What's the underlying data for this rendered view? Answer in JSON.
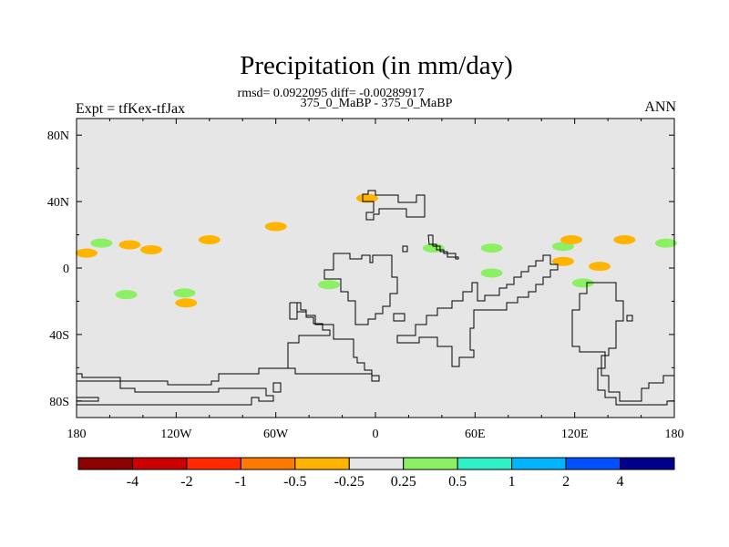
{
  "map": {
    "title": "Precipitation (in mm/day)",
    "stats_line": "rmsd= 0.0922095 diff= -0.00289917",
    "period_line": "375_0_MaBP - 375_0_MaBP",
    "left_label": "Expt = tfKex-tfJax",
    "right_label": "ANN",
    "background_color": "#e6e6e6",
    "lat_ticks": [
      {
        "value": 80,
        "label": "80N"
      },
      {
        "value": 40,
        "label": "40N"
      },
      {
        "value": 0,
        "label": "0"
      },
      {
        "value": -40,
        "label": "40S"
      },
      {
        "value": -80,
        "label": "80S"
      }
    ],
    "lon_ticks": [
      {
        "value": -180,
        "label": "180"
      },
      {
        "value": -120,
        "label": "120W"
      },
      {
        "value": -60,
        "label": "60W"
      },
      {
        "value": 0,
        "label": "0"
      },
      {
        "value": 60,
        "label": "60E"
      },
      {
        "value": 120,
        "label": "120E"
      },
      {
        "value": 180,
        "label": "180"
      }
    ],
    "anomaly_patches": [
      {
        "lon": -165,
        "lat": 15,
        "color": "#8cf064"
      },
      {
        "lon": -174,
        "lat": 9,
        "color": "#ffb400"
      },
      {
        "lon": -148,
        "lat": 14,
        "color": "#ffb400"
      },
      {
        "lon": -135,
        "lat": 11,
        "color": "#ffb400"
      },
      {
        "lon": -100,
        "lat": 17,
        "color": "#ffb400"
      },
      {
        "lon": -60,
        "lat": 25,
        "color": "#ffb400"
      },
      {
        "lon": -150,
        "lat": -16,
        "color": "#8cf064"
      },
      {
        "lon": -115,
        "lat": -15,
        "color": "#8cf064"
      },
      {
        "lon": -114,
        "lat": -21,
        "color": "#ffb400"
      },
      {
        "lon": -28,
        "lat": -10,
        "color": "#8cf064"
      },
      {
        "lon": -5,
        "lat": 42,
        "color": "#ffb400"
      },
      {
        "lon": 35,
        "lat": 12,
        "color": "#8cf064"
      },
      {
        "lon": 70,
        "lat": -3,
        "color": "#8cf064"
      },
      {
        "lon": 70,
        "lat": 12,
        "color": "#8cf064"
      },
      {
        "lon": 113,
        "lat": 4,
        "color": "#ffb400"
      },
      {
        "lon": 135,
        "lat": 1,
        "color": "#ffb400"
      },
      {
        "lon": 113,
        "lat": 13,
        "color": "#8cf064"
      },
      {
        "lon": 118,
        "lat": 17,
        "color": "#ffb400"
      },
      {
        "lon": 150,
        "lat": 17,
        "color": "#ffb400"
      },
      {
        "lon": 175,
        "lat": 15,
        "color": "#8cf064"
      },
      {
        "lon": 125,
        "lat": -9,
        "color": "#8cf064"
      }
    ],
    "colorbar": {
      "colors": [
        "#8b0000",
        "#cc0000",
        "#ff2a00",
        "#ff7a00",
        "#ffb400",
        "#e6e6e6",
        "#8cf064",
        "#30f0c8",
        "#00b4ff",
        "#0050ff",
        "#00008b"
      ],
      "labels": [
        "-4",
        "-2",
        "-1",
        "-0.5",
        "-0.25",
        "0.25",
        "0.5",
        "1",
        "2",
        "4"
      ]
    }
  }
}
